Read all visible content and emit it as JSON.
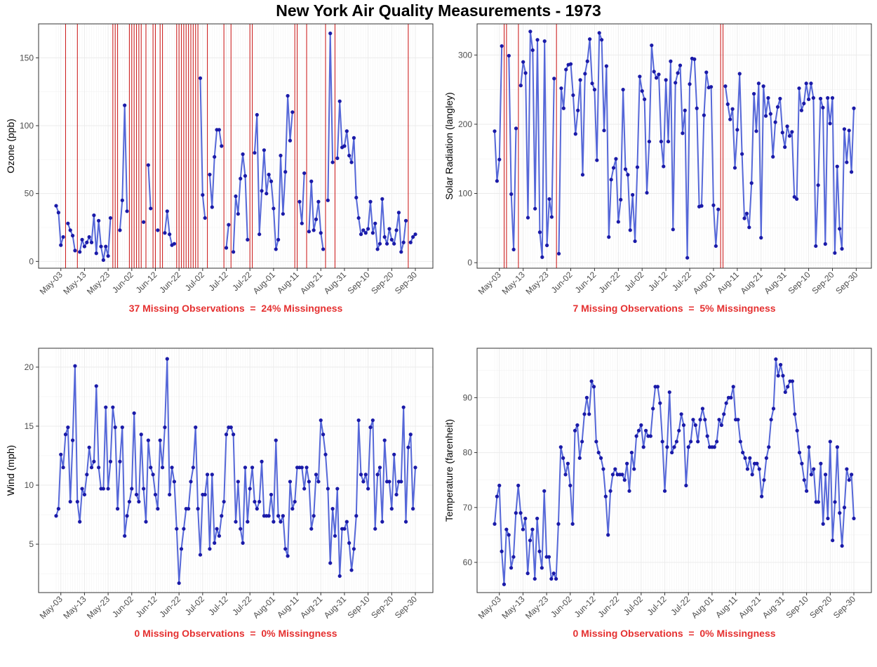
{
  "title": "New York Air Quality Measurements - 1973",
  "colors": {
    "line": "#5567d8",
    "point": "#1a1aa8",
    "missing": "#cc2222",
    "caption": "#e53030",
    "grid": "#ebebeb"
  },
  "x_ticks": [
    "May-03",
    "May-13",
    "May-23",
    "Jun-02",
    "Jun-12",
    "Jun-22",
    "Jul-02",
    "Jul-12",
    "Jul-22",
    "Aug-01",
    "Aug-11",
    "Aug-21",
    "Aug-31",
    "Sep-10",
    "Sep-20",
    "Sep-30"
  ],
  "chart_data": [
    {
      "type": "line",
      "ylabel": "Ozone (ppb)",
      "ylim": [
        -5,
        175
      ],
      "yticks": [
        0,
        50,
        100,
        150
      ],
      "caption": "37 Missing Observations  =  24% Missingness",
      "grid": true,
      "x_range": "1973-05-01 to 1973-09-30 (daily)",
      "values": [
        41,
        36,
        12,
        18,
        null,
        28,
        23,
        19,
        8,
        null,
        7,
        16,
        11,
        14,
        18,
        14,
        34,
        6,
        30,
        11,
        1,
        11,
        4,
        32,
        null,
        null,
        null,
        23,
        45,
        115,
        37,
        null,
        null,
        null,
        null,
        null,
        null,
        29,
        null,
        71,
        39,
        null,
        null,
        23,
        null,
        null,
        21,
        37,
        20,
        12,
        13,
        null,
        null,
        null,
        null,
        null,
        null,
        null,
        null,
        null,
        null,
        135,
        49,
        32,
        null,
        64,
        40,
        77,
        97,
        97,
        85,
        null,
        10,
        27,
        null,
        7,
        48,
        35,
        61,
        79,
        63,
        16,
        null,
        null,
        80,
        108,
        20,
        52,
        82,
        50,
        64,
        59,
        39,
        9,
        16,
        78,
        35,
        66,
        122,
        89,
        110,
        null,
        null,
        44,
        28,
        65,
        null,
        22,
        59,
        23,
        31,
        44,
        21,
        9,
        null,
        45,
        168,
        73,
        null,
        76,
        118,
        84,
        85,
        96,
        78,
        73,
        91,
        47,
        32,
        20,
        23,
        21,
        24,
        44,
        21,
        28,
        9,
        13,
        46,
        18,
        13,
        24,
        16,
        13,
        23,
        36,
        7,
        14,
        30,
        null,
        14,
        18,
        20
      ],
      "missing_count": 37,
      "missing_pct": "24%"
    },
    {
      "type": "line",
      "ylabel": "Solar Radiation (langley)",
      "ylim": [
        -8,
        345
      ],
      "yticks": [
        0,
        100,
        200,
        300
      ],
      "caption": "7 Missing Observations  =  5% Missingness",
      "grid": true,
      "x_range": "1973-05-01 to 1973-09-30 (daily)",
      "values": [
        190,
        118,
        149,
        313,
        null,
        null,
        299,
        99,
        19,
        194,
        null,
        256,
        290,
        274,
        65,
        334,
        307,
        78,
        322,
        44,
        8,
        320,
        25,
        92,
        66,
        266,
        null,
        13,
        252,
        223,
        279,
        286,
        287,
        242,
        186,
        220,
        264,
        127,
        273,
        291,
        323,
        259,
        250,
        148,
        332,
        322,
        191,
        284,
        37,
        120,
        137,
        150,
        59,
        91,
        250,
        135,
        127,
        47,
        98,
        31,
        138,
        269,
        248,
        236,
        101,
        175,
        314,
        276,
        267,
        272,
        175,
        139,
        264,
        175,
        291,
        48,
        260,
        274,
        285,
        187,
        220,
        7,
        258,
        295,
        294,
        223,
        81,
        82,
        213,
        275,
        253,
        254,
        83,
        24,
        77,
        null,
        null,
        255,
        229,
        207,
        222,
        137,
        192,
        273,
        157,
        64,
        71,
        51,
        115,
        244,
        190,
        259,
        36,
        255,
        212,
        238,
        215,
        153,
        203,
        225,
        237,
        188,
        167,
        197,
        183,
        189,
        95,
        92,
        252,
        220,
        230,
        259,
        236,
        259,
        238,
        24,
        112,
        237,
        224,
        27,
        238,
        201,
        238,
        14,
        139,
        49,
        20,
        193,
        145,
        191,
        131,
        223
      ],
      "missing_count": 7,
      "missing_pct": "5%"
    },
    {
      "type": "line",
      "ylabel": "Wind (mph)",
      "ylim": [
        0.9,
        21.6
      ],
      "yticks": [
        5,
        10,
        15,
        20
      ],
      "caption": "0 Missing Observations  =  0% Missingness",
      "grid": true,
      "x_range": "1973-05-01 to 1973-09-30 (daily)",
      "values": [
        7.4,
        8,
        12.6,
        11.5,
        14.3,
        14.9,
        8.6,
        13.8,
        20.1,
        8.6,
        6.9,
        9.7,
        9.2,
        10.9,
        13.2,
        11.5,
        12,
        18.4,
        11.5,
        9.7,
        9.7,
        16.6,
        9.7,
        12,
        16.6,
        14.9,
        8,
        12,
        14.9,
        5.7,
        7.4,
        8.6,
        9.7,
        16.1,
        9.2,
        8.6,
        14.3,
        9.7,
        6.9,
        13.8,
        11.5,
        10.9,
        9.2,
        8,
        13.8,
        11.5,
        14.9,
        20.7,
        9.2,
        11.5,
        10.3,
        6.3,
        1.7,
        4.6,
        6.3,
        8,
        8,
        10.3,
        11.5,
        14.9,
        8,
        4.1,
        9.2,
        9.2,
        10.9,
        4.6,
        10.9,
        5.1,
        6.3,
        5.7,
        7.4,
        8.6,
        14.3,
        14.9,
        14.9,
        14.3,
        6.9,
        10.3,
        6.3,
        5.1,
        11.5,
        6.9,
        9.7,
        11.5,
        8.6,
        8,
        8.6,
        12,
        7.4,
        7.4,
        7.4,
        9.2,
        6.9,
        13.8,
        7.4,
        6.9,
        7.4,
        4.6,
        4,
        10.3,
        8,
        8.6,
        11.5,
        11.5,
        11.5,
        9.7,
        11.5,
        10.3,
        6.3,
        7.4,
        10.9,
        10.3,
        15.5,
        14.3,
        12.6,
        9.7,
        3.4,
        8,
        5.7,
        9.7,
        2.3,
        6.3,
        6.3,
        6.9,
        5.1,
        2.8,
        4.6,
        7.4,
        15.5,
        10.9,
        10.3,
        10.9,
        9.7,
        14.9,
        15.5,
        6.3,
        10.9,
        11.5,
        6.9,
        13.8,
        10.3,
        10.3,
        8,
        12.6,
        9.2,
        10.3,
        10.3,
        16.6,
        6.9,
        13.2,
        14.3,
        8,
        11.5
      ],
      "missing_count": 0,
      "missing_pct": "0%"
    },
    {
      "type": "line",
      "ylabel": "Temperature (farenheit)",
      "ylim": [
        54.5,
        99
      ],
      "yticks": [
        60,
        70,
        80,
        90
      ],
      "caption": "0 Missing Observations  =  0% Missingness",
      "grid": true,
      "x_range": "1973-05-01 to 1973-09-30 (daily)",
      "values": [
        67,
        72,
        74,
        62,
        56,
        66,
        65,
        59,
        61,
        69,
        74,
        69,
        66,
        68,
        58,
        64,
        66,
        57,
        68,
        62,
        59,
        73,
        61,
        61,
        57,
        58,
        57,
        67,
        81,
        79,
        76,
        78,
        74,
        67,
        84,
        85,
        79,
        82,
        87,
        90,
        87,
        93,
        92,
        82,
        80,
        79,
        77,
        72,
        65,
        73,
        76,
        77,
        76,
        76,
        76,
        75,
        78,
        73,
        80,
        77,
        83,
        84,
        85,
        81,
        84,
        83,
        83,
        88,
        92,
        92,
        89,
        82,
        73,
        81,
        91,
        80,
        81,
        82,
        84,
        87,
        85,
        74,
        81,
        82,
        86,
        85,
        82,
        86,
        88,
        86,
        83,
        81,
        81,
        81,
        82,
        86,
        85,
        87,
        89,
        90,
        90,
        92,
        86,
        86,
        82,
        80,
        79,
        77,
        79,
        76,
        78,
        78,
        77,
        72,
        75,
        79,
        81,
        86,
        88,
        97,
        94,
        96,
        94,
        91,
        92,
        93,
        93,
        87,
        84,
        80,
        78,
        75,
        73,
        81,
        76,
        77,
        71,
        71,
        78,
        67,
        76,
        68,
        82,
        64,
        71,
        81,
        69,
        63,
        70,
        77,
        75,
        76,
        68
      ],
      "missing_count": 0,
      "missing_pct": "0%"
    }
  ]
}
